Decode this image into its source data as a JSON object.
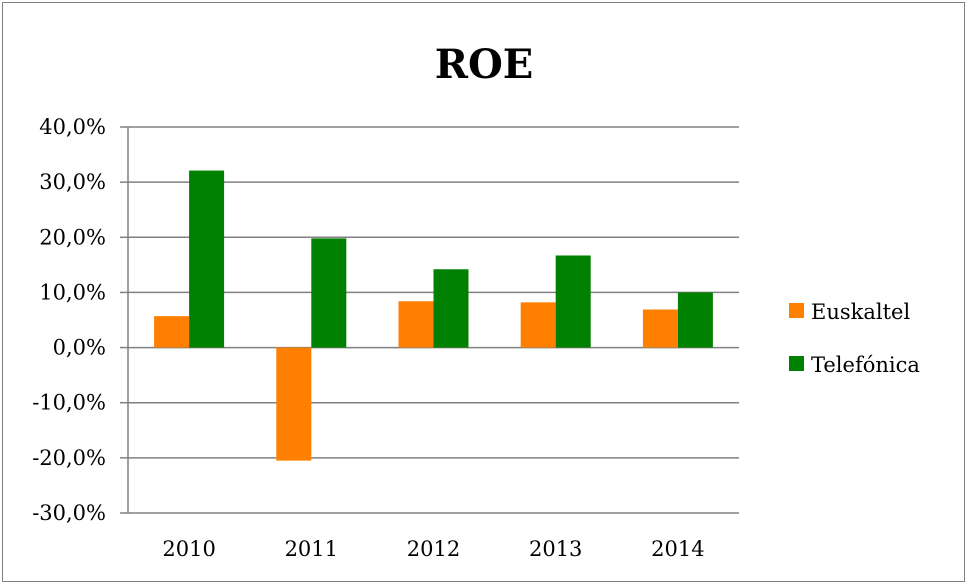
{
  "chart_data": {
    "type": "bar",
    "title": "ROE",
    "xlabel": "",
    "ylabel": "",
    "categories": [
      "2010",
      "2011",
      "2012",
      "2013",
      "2014"
    ],
    "series": [
      {
        "name": "Euskaltel",
        "color": "#FF8000",
        "values": [
          5.7,
          -20.5,
          8.4,
          8.2,
          6.9
        ]
      },
      {
        "name": "Telefónica",
        "color": "#008000",
        "values": [
          32.1,
          19.8,
          14.2,
          16.7,
          10.0
        ]
      }
    ],
    "ylim": [
      -30,
      40
    ],
    "yticks": [
      40,
      30,
      20,
      10,
      0,
      -10,
      -20,
      -30
    ],
    "ytick_labels": [
      "40,0%",
      "30,0%",
      "20,0%",
      "10,0%",
      "0,0%",
      "-10,0%",
      "-20,0%",
      "-30,0%"
    ],
    "grid": true,
    "legend_position": "right",
    "gridline_color": "#808080"
  }
}
